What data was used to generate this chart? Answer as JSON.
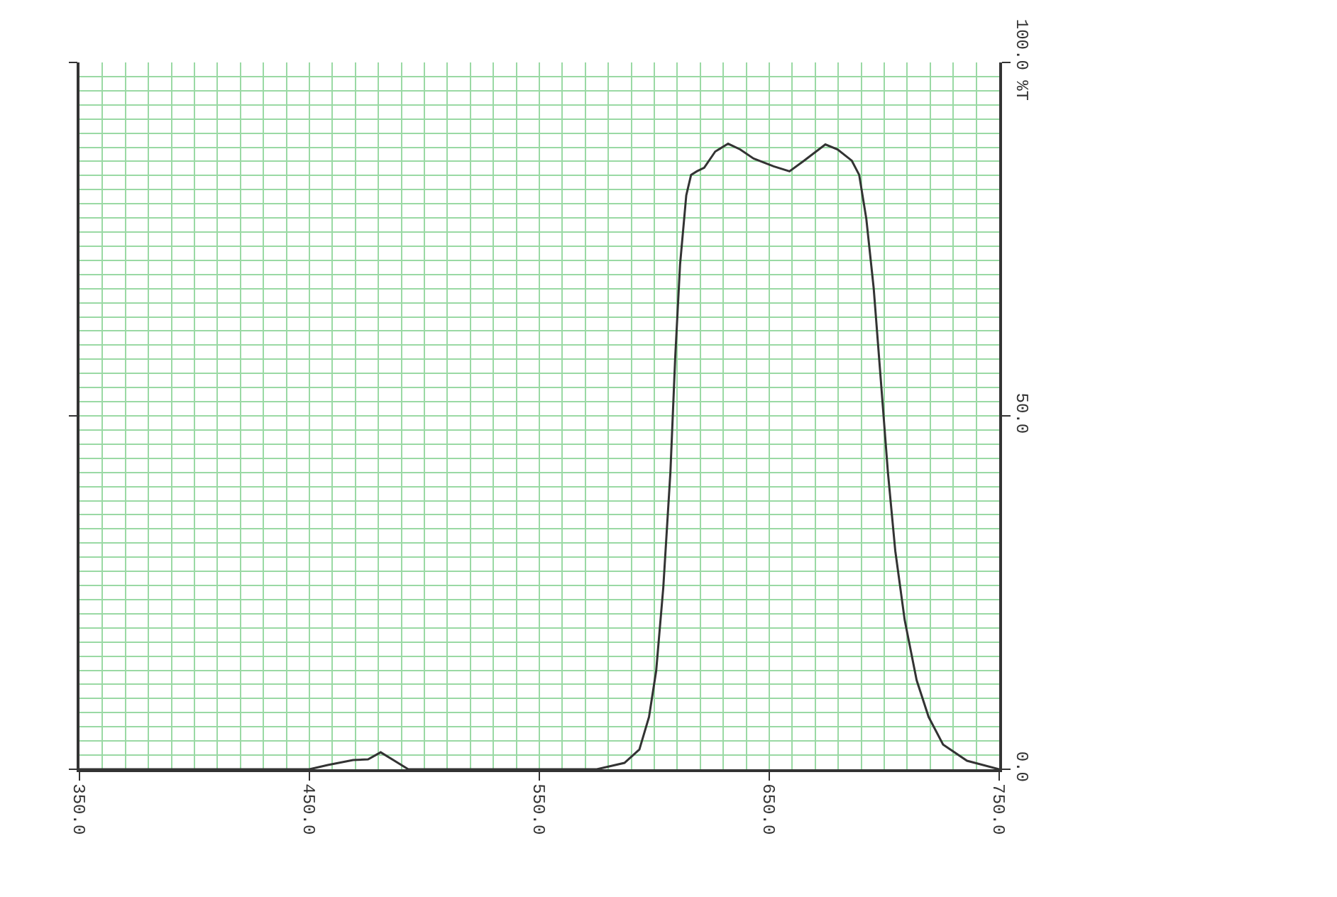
{
  "chart_data": {
    "type": "line",
    "x": [
      350,
      450,
      458,
      469,
      475.5,
      481,
      487,
      493,
      575,
      587,
      593.5,
      597.7,
      600.8,
      603.9,
      607,
      609.1,
      611.2,
      613.9,
      616,
      618.5,
      621.7,
      626.5,
      632.1,
      637.3,
      643.2,
      651.9,
      658.8,
      665.1,
      674.4,
      679.7,
      685.9,
      689.1,
      692.2,
      695.4,
      698.5,
      701.6,
      704.8,
      708.9,
      714.1,
      719.3,
      725.6,
      736,
      750
    ],
    "values": [
      0,
      0,
      0.6,
      1.3,
      1.4,
      2.4,
      1.2,
      0,
      0,
      0.9,
      2.8,
      7.4,
      13.9,
      25.7,
      42,
      58.3,
      71.4,
      81.2,
      84.1,
      84.6,
      85.1,
      87.4,
      88.5,
      87.7,
      86.4,
      85.3,
      84.6,
      86.1,
      88.4,
      87.7,
      86.1,
      84.1,
      77.9,
      68.1,
      55.1,
      42,
      30.9,
      21.1,
      12.6,
      7.4,
      3.5,
      1.2,
      0
    ],
    "color": "#333333",
    "line_style": "solid",
    "xlim": [
      350,
      750
    ],
    "xticks": [
      {
        "value": 350,
        "label": "350.0"
      },
      {
        "value": 360,
        "label": null
      },
      {
        "value": 370,
        "label": null
      },
      {
        "value": 380,
        "label": null
      },
      {
        "value": 390,
        "label": null
      },
      {
        "value": 400,
        "label": null
      },
      {
        "value": 410,
        "label": null
      },
      {
        "value": 420,
        "label": null
      },
      {
        "value": 430,
        "label": null
      },
      {
        "value": 440,
        "label": null
      },
      {
        "value": 450,
        "label": "450.0"
      },
      {
        "value": 460,
        "label": null
      },
      {
        "value": 470,
        "label": null
      },
      {
        "value": 480,
        "label": null
      },
      {
        "value": 490,
        "label": null
      },
      {
        "value": 500,
        "label": null
      },
      {
        "value": 510,
        "label": null
      },
      {
        "value": 520,
        "label": null
      },
      {
        "value": 530,
        "label": null
      },
      {
        "value": 540,
        "label": null
      },
      {
        "value": 550,
        "label": "550.0"
      },
      {
        "value": 560,
        "label": null
      },
      {
        "value": 570,
        "label": null
      },
      {
        "value": 580,
        "label": null
      },
      {
        "value": 590,
        "label": null
      },
      {
        "value": 600,
        "label": null
      },
      {
        "value": 610,
        "label": null
      },
      {
        "value": 620,
        "label": null
      },
      {
        "value": 630,
        "label": null
      },
      {
        "value": 640,
        "label": null
      },
      {
        "value": 650,
        "label": "650.0"
      },
      {
        "value": 660,
        "label": null
      },
      {
        "value": 670,
        "label": null
      },
      {
        "value": 680,
        "label": null
      },
      {
        "value": 690,
        "label": null
      },
      {
        "value": 700,
        "label": null
      },
      {
        "value": 710,
        "label": null
      },
      {
        "value": 720,
        "label": null
      },
      {
        "value": 730,
        "label": null
      },
      {
        "value": 740,
        "label": null
      },
      {
        "value": 750,
        "label": "750.0"
      }
    ],
    "ylim": [
      0,
      100
    ],
    "yticks": [
      {
        "value": 0,
        "label": "0.0"
      },
      {
        "value": 2,
        "label": null
      },
      {
        "value": 4,
        "label": null
      },
      {
        "value": 6,
        "label": null
      },
      {
        "value": 8,
        "label": null
      },
      {
        "value": 10,
        "label": null
      },
      {
        "value": 12,
        "label": null
      },
      {
        "value": 14,
        "label": null
      },
      {
        "value": 16,
        "label": null
      },
      {
        "value": 18,
        "label": null
      },
      {
        "value": 20,
        "label": null
      },
      {
        "value": 22,
        "label": null
      },
      {
        "value": 24,
        "label": null
      },
      {
        "value": 26,
        "label": null
      },
      {
        "value": 28,
        "label": null
      },
      {
        "value": 30,
        "label": null
      },
      {
        "value": 32,
        "label": null
      },
      {
        "value": 34,
        "label": null
      },
      {
        "value": 36,
        "label": null
      },
      {
        "value": 38,
        "label": null
      },
      {
        "value": 40,
        "label": null
      },
      {
        "value": 42,
        "label": null
      },
      {
        "value": 44,
        "label": null
      },
      {
        "value": 46,
        "label": null
      },
      {
        "value": 48,
        "label": null
      },
      {
        "value": 50,
        "label": "50.0"
      },
      {
        "value": 52,
        "label": null
      },
      {
        "value": 54,
        "label": null
      },
      {
        "value": 56,
        "label": null
      },
      {
        "value": 58,
        "label": null
      },
      {
        "value": 60,
        "label": null
      },
      {
        "value": 62,
        "label": null
      },
      {
        "value": 64,
        "label": null
      },
      {
        "value": 66,
        "label": null
      },
      {
        "value": 68,
        "label": null
      },
      {
        "value": 70,
        "label": null
      },
      {
        "value": 72,
        "label": null
      },
      {
        "value": 74,
        "label": null
      },
      {
        "value": 76,
        "label": null
      },
      {
        "value": 78,
        "label": null
      },
      {
        "value": 80,
        "label": null
      },
      {
        "value": 82,
        "label": null
      },
      {
        "value": 84,
        "label": null
      },
      {
        "value": 86,
        "label": null
      },
      {
        "value": 88,
        "label": null
      },
      {
        "value": 90,
        "label": null
      },
      {
        "value": 92,
        "label": null
      },
      {
        "value": 94,
        "label": null
      },
      {
        "value": 96,
        "label": null
      },
      {
        "value": 98,
        "label": null
      },
      {
        "value": 100,
        "label": "100.0 %T"
      }
    ],
    "grid": true
  }
}
